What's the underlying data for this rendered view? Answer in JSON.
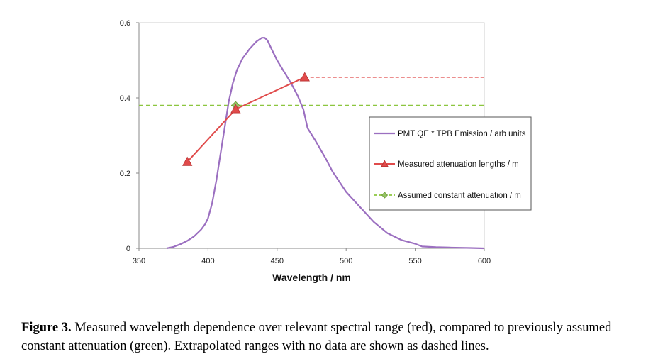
{
  "chart_data": {
    "type": "line",
    "title": "",
    "xlabel": "Wavelength / nm",
    "ylabel": "",
    "xlim": [
      350,
      600
    ],
    "ylim": [
      0,
      0.6
    ],
    "x_ticks": [
      "350",
      "400",
      "450",
      "500",
      "550",
      "600"
    ],
    "y_ticks": [
      "0",
      "0.2",
      "0.4",
      "0.6"
    ],
    "legend_position": "right",
    "series": [
      {
        "name": "PMT QE * TPB Emission / arb units",
        "color": "#9b6fc0",
        "style": "solid",
        "marker": "none",
        "points": [
          [
            370,
            0.0
          ],
          [
            375,
            0.004
          ],
          [
            380,
            0.011
          ],
          [
            385,
            0.02
          ],
          [
            390,
            0.032
          ],
          [
            395,
            0.05
          ],
          [
            398,
            0.065
          ],
          [
            400,
            0.08
          ],
          [
            403,
            0.12
          ],
          [
            406,
            0.18
          ],
          [
            409,
            0.25
          ],
          [
            412,
            0.32
          ],
          [
            415,
            0.39
          ],
          [
            418,
            0.44
          ],
          [
            421,
            0.475
          ],
          [
            425,
            0.505
          ],
          [
            430,
            0.53
          ],
          [
            435,
            0.55
          ],
          [
            439,
            0.56
          ],
          [
            441,
            0.56
          ],
          [
            443,
            0.553
          ],
          [
            446,
            0.53
          ],
          [
            450,
            0.5
          ],
          [
            455,
            0.47
          ],
          [
            460,
            0.44
          ],
          [
            465,
            0.405
          ],
          [
            469,
            0.37
          ],
          [
            472,
            0.32
          ],
          [
            478,
            0.285
          ],
          [
            485,
            0.24
          ],
          [
            490,
            0.205
          ],
          [
            500,
            0.15
          ],
          [
            510,
            0.11
          ],
          [
            520,
            0.07
          ],
          [
            530,
            0.04
          ],
          [
            540,
            0.022
          ],
          [
            550,
            0.012
          ],
          [
            555,
            0.005
          ],
          [
            565,
            0.003
          ],
          [
            575,
            0.002
          ],
          [
            590,
            0.001
          ],
          [
            600,
            0.0
          ]
        ]
      },
      {
        "name": "Measured attenuation lengths / m",
        "color": "#e04b4b",
        "style": "solid",
        "marker": "triangle",
        "points": [
          [
            385,
            0.23
          ],
          [
            420,
            0.37
          ],
          [
            470,
            0.455
          ]
        ],
        "extrapolated": {
          "from": 470,
          "to": 600,
          "value": 0.455,
          "style": "dashed"
        }
      },
      {
        "name": "Assumed constant attenuation / m",
        "color": "#8cc63f",
        "style": "dashed",
        "marker": "diamond",
        "points": [
          [
            420,
            0.38
          ]
        ],
        "range": [
          350,
          600
        ],
        "value": 0.38
      }
    ]
  },
  "caption": {
    "label": "Figure 3.",
    "text": "Measured wavelength dependence over relevant spectral range (red), compared to previously assumed constant attenuation (green). Extrapolated ranges with no data are shown as dashed lines."
  }
}
